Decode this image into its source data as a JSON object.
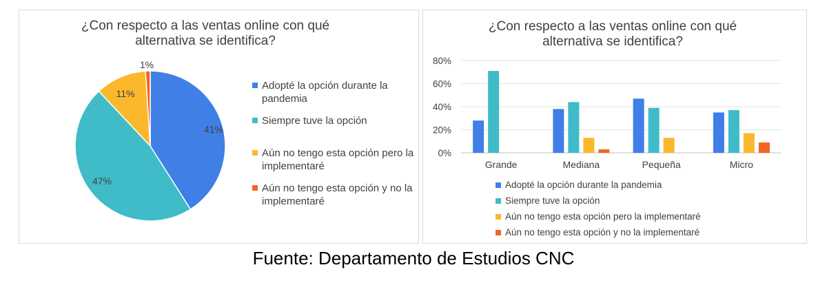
{
  "source": "Fuente: Departamento de Estudios CNC",
  "pie_chart": {
    "title_line1": "¿Con respecto a las ventas online con qué",
    "title_line2": "alternativa se identifica?"
  },
  "bar_chart": {
    "title_line1": "¿Con respecto a las ventas online con qué",
    "title_line2": "alternativa se identifica?"
  },
  "colors": {
    "adopte": "#3f7fe6",
    "siempre": "#3fbcc8",
    "aun_implementare": "#fbb82c",
    "aun_no_implementare": "#f36520"
  },
  "chart_data": [
    {
      "type": "pie",
      "title": "¿Con respecto a las ventas online con qué alternativa se identifica?",
      "labels": [
        "Adopté la opción durante la pandemia",
        "Siempre tuve la opción",
        "Aún no tengo esta opción pero la implementaré",
        "Aún no tengo esta opción y no la implementaré"
      ],
      "values": [
        41,
        47,
        11,
        1
      ],
      "data_labels": [
        "41%",
        "47%",
        "11%",
        "1%"
      ],
      "legend_position": "right"
    },
    {
      "type": "bar",
      "title": "¿Con respecto a las ventas online con qué alternativa se identifica?",
      "categories": [
        "Grande",
        "Mediana",
        "Pequeña",
        "Micro"
      ],
      "series": [
        {
          "name": "Adopté la opción durante la pandemia",
          "values": [
            28,
            38,
            47,
            35
          ]
        },
        {
          "name": "Siempre tuve la opción",
          "values": [
            71,
            44,
            39,
            37
          ]
        },
        {
          "name": "Aún no tengo esta opción pero la implementaré",
          "values": [
            0,
            13,
            13,
            17
          ]
        },
        {
          "name": "Aún no tengo esta opción y no la implementaré",
          "values": [
            0,
            3,
            0,
            9
          ]
        }
      ],
      "yticks": [
        "0%",
        "20%",
        "40%",
        "60%",
        "80%"
      ],
      "ylim": [
        0,
        80
      ],
      "grid": true,
      "legend_position": "bottom"
    }
  ]
}
